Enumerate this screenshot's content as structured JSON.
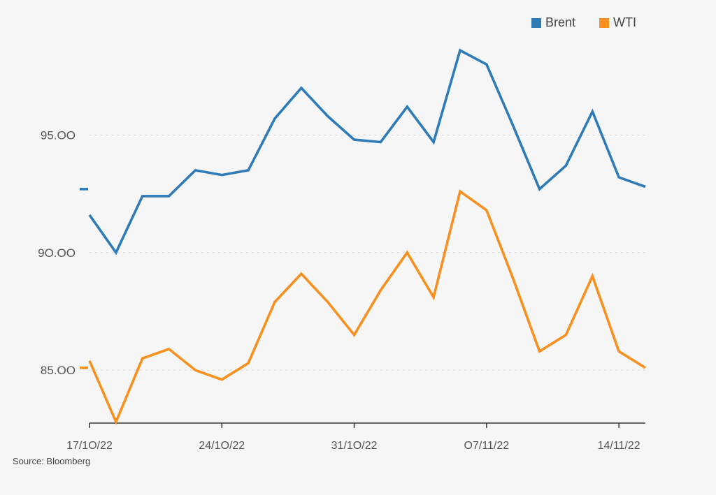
{
  "chart_data": {
    "type": "line",
    "x": [
      "17/10/22",
      "18/10/22",
      "19/10/22",
      "20/10/22",
      "21/10/22",
      "24/10/22",
      "25/10/22",
      "26/10/22",
      "27/10/22",
      "28/10/22",
      "31/10/22",
      "01/11/22",
      "02/11/22",
      "03/11/22",
      "04/11/22",
      "07/11/22",
      "08/11/22",
      "09/11/22",
      "10/11/22",
      "11/11/22",
      "14/11/22",
      "15/11/22"
    ],
    "x_tick_labels": [
      "17/1O/22",
      "24/1O/22",
      "31/1O/22",
      "O7/11/22",
      "14/11/22"
    ],
    "x_tick_indices": [
      0,
      5,
      10,
      15,
      20
    ],
    "y_tick_labels": [
      "85.OO",
      "9O.OO",
      "95.OO"
    ],
    "y_tick_values": [
      85,
      90,
      95
    ],
    "ylim": [
      82.75,
      98.9
    ],
    "grid": "horizontal dotted",
    "legend_position": "top-right",
    "series": [
      {
        "name": "Brent",
        "color": "#2f7bb8",
        "start_marker": 92.7,
        "values": [
          91.6,
          90.0,
          92.4,
          92.4,
          93.5,
          93.3,
          93.5,
          95.7,
          97.0,
          95.8,
          94.8,
          94.7,
          96.2,
          94.7,
          98.6,
          98.0,
          95.4,
          92.7,
          93.7,
          96.0,
          93.2,
          92.8
        ]
      },
      {
        "name": "WTI",
        "color": "#f7901e",
        "start_marker": 85.1,
        "values": [
          85.4,
          82.8,
          85.5,
          85.9,
          85.0,
          84.6,
          85.3,
          87.9,
          89.1,
          87.9,
          86.5,
          88.4,
          90.0,
          88.1,
          92.6,
          91.8,
          88.9,
          85.8,
          86.5,
          89.0,
          85.8,
          85.1
        ]
      }
    ]
  },
  "source_text": "Source: Bloomberg"
}
